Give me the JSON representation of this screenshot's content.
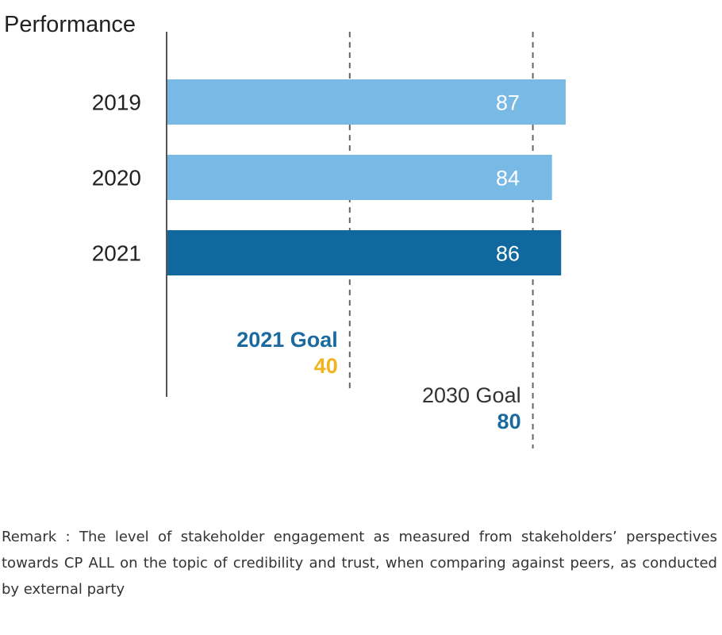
{
  "chart_data": {
    "type": "bar",
    "orientation": "horizontal",
    "ylabel": "Performance",
    "categories": [
      "2019",
      "2020",
      "2021"
    ],
    "values": [
      87,
      84,
      86
    ],
    "data_labels": [
      "87",
      "84",
      "86"
    ],
    "bar_colors": [
      "#78b9e6",
      "#78b9e6",
      "#10689f"
    ],
    "xlim": [
      0,
      87
    ],
    "grid": false,
    "reference_lines": [
      {
        "label": "2021 Goal",
        "value": 40,
        "value_label": "40",
        "label_color": "#1a6aa0",
        "value_color": "#f2b41c",
        "bold": true
      },
      {
        "label": "2030 Goal",
        "value": 80,
        "value_label": "80",
        "label_color": "#333333",
        "value_color": "#1a6aa0",
        "bold": false
      }
    ]
  },
  "remark": "Remark : The level of stakeholder engagement as measured from stakeholders’ perspectives towards CP ALL on the topic of credibility and trust, when comparing against peers, as conducted by external party"
}
